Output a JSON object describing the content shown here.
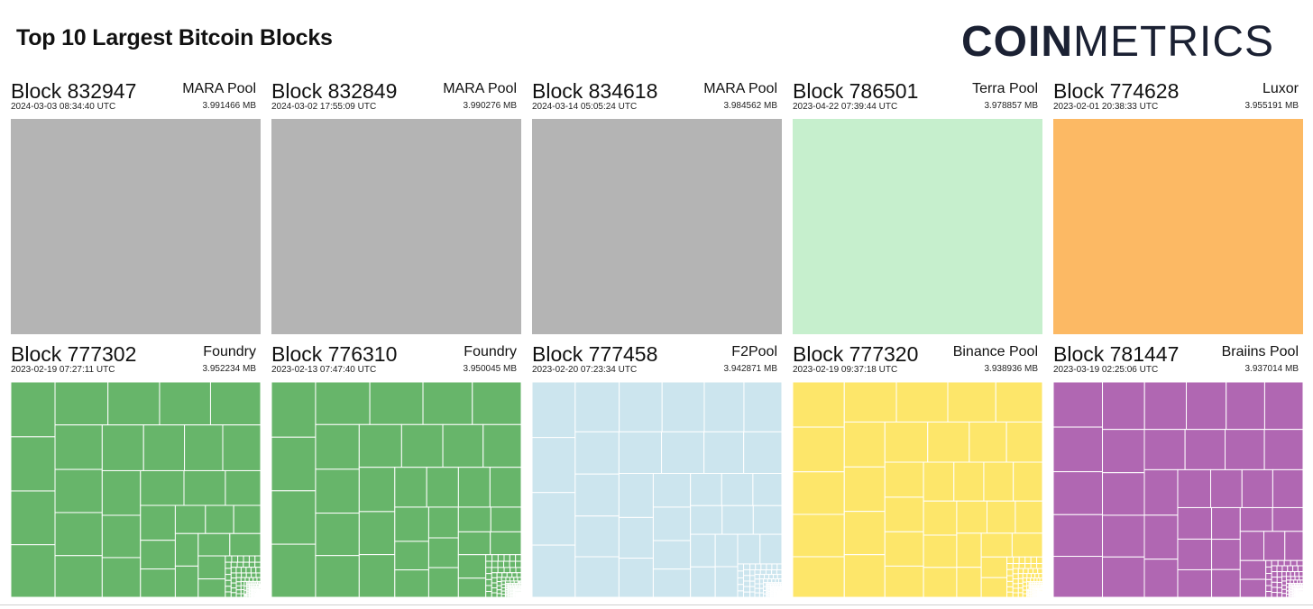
{
  "title": "Top 10 Largest Bitcoin Blocks",
  "logo": {
    "bold": "COIN",
    "light": "METRICS"
  },
  "chart_data": {
    "type": "treemap",
    "title": "Top 10 Largest Bitcoin Blocks",
    "blocks": [
      {
        "label": "Block 832947",
        "pool": "MARA Pool",
        "timestamp": "2024-03-03 08:34:40 UTC",
        "size": "3.991466 MB",
        "color": "#b4b4b4",
        "structure": "single"
      },
      {
        "label": "Block 832849",
        "pool": "MARA Pool",
        "timestamp": "2024-03-02 17:55:09 UTC",
        "size": "3.990276 MB",
        "color": "#b4b4b4",
        "structure": "single"
      },
      {
        "label": "Block 834618",
        "pool": "MARA Pool",
        "timestamp": "2024-03-14 05:05:24 UTC",
        "size": "3.984562 MB",
        "color": "#b4b4b4",
        "structure": "single"
      },
      {
        "label": "Block 786501",
        "pool": "Terra Pool",
        "timestamp": "2023-04-22 07:39:44 UTC",
        "size": "3.978857 MB",
        "color": "#c6efcd",
        "structure": "single"
      },
      {
        "label": "Block 774628",
        "pool": "Luxor",
        "timestamp": "2023-02-01 20:38:33 UTC",
        "size": "3.955191 MB",
        "color": "#fcb964",
        "structure": "single"
      },
      {
        "label": "Block 777302",
        "pool": "Foundry",
        "timestamp": "2023-02-19 07:27:11 UTC",
        "size": "3.952234 MB",
        "color": "#67b56a",
        "structure": "many"
      },
      {
        "label": "Block 776310",
        "pool": "Foundry",
        "timestamp": "2023-02-13 07:47:40 UTC",
        "size": "3.950045 MB",
        "color": "#67b56a",
        "structure": "many"
      },
      {
        "label": "Block 777458",
        "pool": "F2Pool",
        "timestamp": "2023-02-20 07:23:34 UTC",
        "size": "3.942871 MB",
        "color": "#cce5ee",
        "structure": "many"
      },
      {
        "label": "Block 777320",
        "pool": "Binance Pool",
        "timestamp": "2023-02-19 09:37:18 UTC",
        "size": "3.938936 MB",
        "color": "#fde66a",
        "structure": "many"
      },
      {
        "label": "Block 781447",
        "pool": "Braiins Pool",
        "timestamp": "2023-03-19 02:25:06 UTC",
        "size": "3.937014 MB",
        "color": "#b067b2",
        "structure": "many"
      }
    ]
  }
}
